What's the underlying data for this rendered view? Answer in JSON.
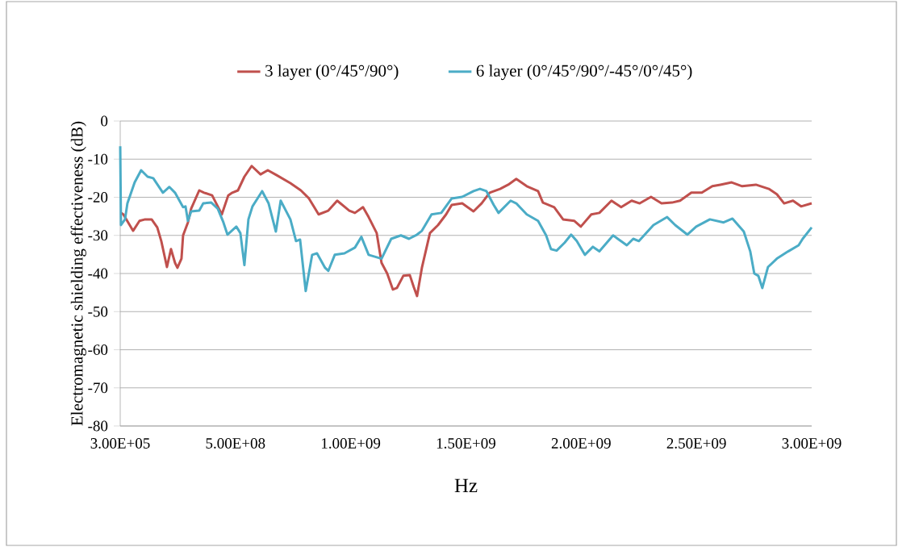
{
  "chart_data": {
    "type": "line",
    "xlabel": "Hz",
    "ylabel": "Electromagnetic shielding effectiveness (dB)",
    "xlim": [
      300000,
      3000000000
    ],
    "ylim": [
      -80,
      0
    ],
    "xticks": [
      {
        "value": 300000,
        "label": "3.00E+05"
      },
      {
        "value": 500000000,
        "label": "5.00E+08"
      },
      {
        "value": 1000000000,
        "label": "1.00E+09"
      },
      {
        "value": 1500000000,
        "label": "1.50E+09"
      },
      {
        "value": 2000000000,
        "label": "2.00E+09"
      },
      {
        "value": 2500000000,
        "label": "2.50E+09"
      },
      {
        "value": 3000000000,
        "label": "3.00E+09"
      }
    ],
    "yticks": [
      0,
      -10,
      -20,
      -30,
      -40,
      -50,
      -60,
      -70,
      -80
    ],
    "grid": "y",
    "legend": "top",
    "marker": "none",
    "line_style": "solid",
    "series": [
      {
        "name": "3 layer (0°/45°/90°)",
        "color": "#c0504d",
        "x": [
          3500000.0,
          14000000.0,
          56000000.0,
          84000000.0,
          108500000.0,
          136500000.0,
          161000000.0,
          178500000.0,
          203000000.0,
          220500000.0,
          238000000.0,
          248500000.0,
          266000000.0,
          273000000.0,
          294000000.0,
          308000000.0,
          343000000.0,
          364000000.0,
          399000000.0,
          423500000.0,
          441000000.0,
          469000000.0,
          486500000.0,
          511000000.0,
          539000000.0,
          570500000.0,
          609000000.0,
          640500000.0,
          679000000.0,
          738500000.0,
          784000000.0,
          819000000.0,
          861000000.0,
          903000000.0,
          941500000.0,
          994000000.0,
          1018500000.0,
          1053500000.0,
          1078000000.0,
          1113000000.0,
          1134000000.0,
          1158500000.0,
          1183000000.0,
          1200500000.0,
          1228500000.0,
          1256500000.0,
          1274000000.0,
          1288000000.0,
          1309000000.0,
          1344000000.0,
          1379000000.0,
          1414000000.0,
          1438500000.0,
          1484000000.0,
          1533000000.0,
          1568000000.0,
          1603000000.0,
          1648500000.0,
          1683500000.0,
          1718500000.0,
          1764000000.0,
          1813000000.0,
          1834000000.0,
          1883000000.0,
          1921500000.0,
          1970500000.0,
          1998500000.0,
          2044000000.0,
          2079000000.0,
          2131500000.0,
          2173500000.0,
          2219000000.0,
          2254000000.0,
          2303000000.0,
          2348500000.0,
          2394000000.0,
          2429000000.0,
          2478000000.0,
          2523500000.0,
          2569000000.0,
          2604000000.0,
          2653000000.0,
          2698500000.0,
          2758000000.0,
          2814000000.0,
          2849000000.0,
          2880500000.0,
          2919000000.0,
          2954000000.0,
          3000000000.0
        ],
        "values": [
          -24.1,
          -24.5,
          -28.8,
          -26.2,
          -25.8,
          -25.8,
          -27.9,
          -31.5,
          -38.3,
          -33.6,
          -37.2,
          -38.5,
          -36.1,
          -30.0,
          -26.6,
          -23.0,
          -18.2,
          -18.8,
          -19.5,
          -22.4,
          -24.5,
          -19.5,
          -18.8,
          -18.2,
          -14.6,
          -11.8,
          -14.0,
          -12.9,
          -14.2,
          -16.3,
          -18.2,
          -20.3,
          -24.5,
          -23.5,
          -20.9,
          -23.5,
          -24.1,
          -22.6,
          -25.2,
          -29.4,
          -37.2,
          -40.0,
          -44.2,
          -43.8,
          -40.6,
          -40.4,
          -43.6,
          -45.9,
          -38.5,
          -29.4,
          -27.3,
          -24.5,
          -22.0,
          -21.6,
          -23.7,
          -21.6,
          -18.8,
          -17.8,
          -16.7,
          -15.2,
          -17.1,
          -18.4,
          -21.4,
          -22.6,
          -25.8,
          -26.2,
          -27.7,
          -24.5,
          -24.1,
          -20.9,
          -22.6,
          -20.9,
          -21.6,
          -19.9,
          -21.6,
          -21.4,
          -20.9,
          -18.8,
          -18.8,
          -17.1,
          -16.7,
          -16.1,
          -17.1,
          -16.7,
          -17.8,
          -19.2,
          -21.6,
          -20.9,
          -22.4,
          -21.6
        ]
      },
      {
        "name": "6 layer (0°/45°/90°/-45°/0°/45°)",
        "color": "#4bacc6",
        "x": [
          300000,
          3500000.0,
          21000000.0,
          31500000.0,
          63000000.0,
          91000000.0,
          119000000.0,
          143500000.0,
          185500000.0,
          213500000.0,
          238000000.0,
          273000000.0,
          283500000.0,
          294000000.0,
          308000000.0,
          343000000.0,
          360500000.0,
          395500000.0,
          423500000.0,
          448000000.0,
          465500000.0,
          504000000.0,
          521500000.0,
          539000000.0,
          556500000.0,
          574000000.0,
          616000000.0,
          644000000.0,
          675500000.0,
          696500000.0,
          738500000.0,
          763000000.0,
          780500000.0,
          805000000.0,
          833000000.0,
          854000000.0,
          889000000.0,
          903000000.0,
          931000000.0,
          973000000.0,
          1018500000.0,
          1046500000.0,
          1078000000.0,
          1134000000.0,
          1176000000.0,
          1218000000.0,
          1253000000.0,
          1288000000.0,
          1309000000.0,
          1351000000.0,
          1393000000.0,
          1438500000.0,
          1484000000.0,
          1533000000.0,
          1561000000.0,
          1589000000.0,
          1620500000.0,
          1641500000.0,
          1694000000.0,
          1718500000.0,
          1764000000.0,
          1813000000.0,
          1848000000.0,
          1869000000.0,
          1893500000.0,
          1928500000.0,
          1956500000.0,
          1981000000.0,
          2016000000.0,
          2051000000.0,
          2079000000.0,
          2138500000.0,
          2198000000.0,
          2226000000.0,
          2250500000.0,
          2313500000.0,
          2373000000.0,
          2408000000.0,
          2460500000.0,
          2499000000.0,
          2558500000.0,
          2618000000.0,
          2656500000.0,
          2705500000.0,
          2733500000.0,
          2751000000.0,
          2768500000.0,
          2786000000.0,
          2810500000.0,
          2849000000.0,
          2898000000.0,
          2943500000.0,
          2961000000.0,
          3000000000.0
        ],
        "values": [
          -6.6,
          -27.3,
          -25.8,
          -21.6,
          -16.1,
          -12.9,
          -14.6,
          -15.0,
          -18.8,
          -17.3,
          -18.8,
          -22.6,
          -22.4,
          -26.2,
          -23.7,
          -23.5,
          -21.6,
          -21.4,
          -23.0,
          -26.6,
          -29.8,
          -27.7,
          -29.4,
          -37.8,
          -25.8,
          -22.4,
          -18.4,
          -21.6,
          -29.0,
          -20.9,
          -25.8,
          -31.5,
          -31.1,
          -44.6,
          -35.1,
          -34.7,
          -38.5,
          -39.3,
          -35.1,
          -34.7,
          -33.2,
          -30.4,
          -35.1,
          -36.1,
          -30.9,
          -30.0,
          -30.9,
          -29.8,
          -28.8,
          -24.5,
          -24.1,
          -20.3,
          -19.9,
          -18.4,
          -17.8,
          -18.4,
          -22.0,
          -24.1,
          -20.9,
          -21.6,
          -24.5,
          -26.2,
          -30.0,
          -33.6,
          -34.0,
          -31.9,
          -29.8,
          -31.5,
          -35.1,
          -33.0,
          -34.2,
          -30.0,
          -32.6,
          -30.9,
          -31.5,
          -27.3,
          -25.2,
          -27.3,
          -29.8,
          -27.7,
          -25.8,
          -26.6,
          -25.6,
          -29.0,
          -34.2,
          -40.0,
          -40.6,
          -43.8,
          -38.3,
          -36.1,
          -34.2,
          -32.6,
          -30.9,
          -27.9
        ]
      }
    ]
  }
}
